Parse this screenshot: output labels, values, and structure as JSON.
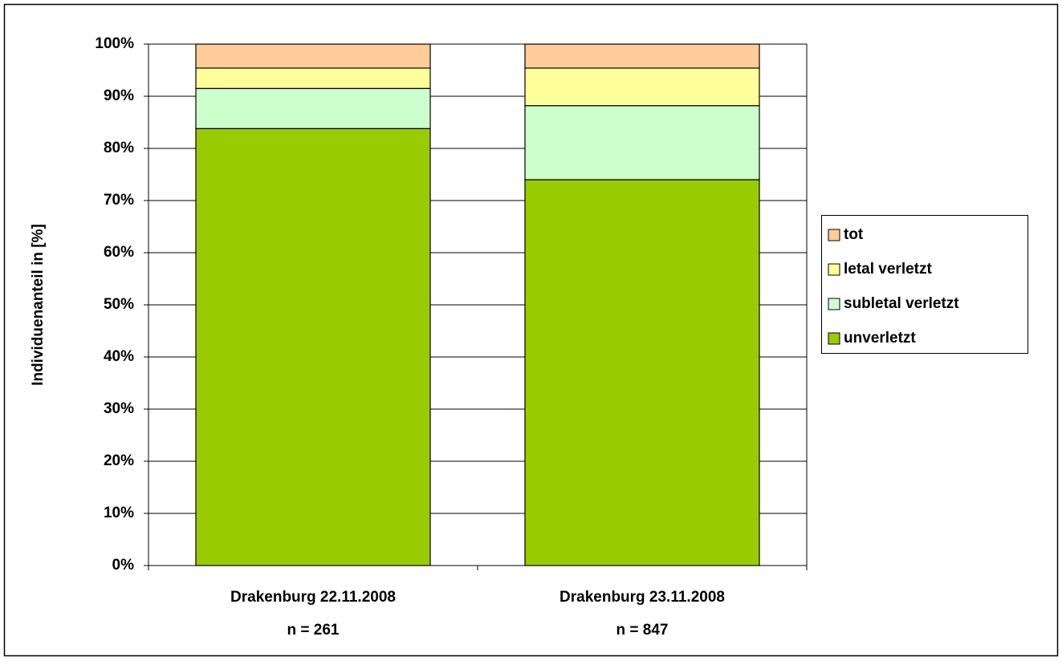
{
  "chart_data": {
    "type": "stacked_bar",
    "ylabel": "Individuenanteil in [%]",
    "categories": [
      "Drakenburg 22.11.2008",
      "Drakenburg 23.11.2008"
    ],
    "category_sublabels": [
      "n = 261",
      "n = 847"
    ],
    "series": [
      {
        "name": "unverletzt",
        "color": "#99cc00",
        "values": [
          83.8,
          74.0
        ]
      },
      {
        "name": "subletal verletzt",
        "color": "#ccffcc",
        "values": [
          7.7,
          14.2
        ]
      },
      {
        "name": "letal verletzt",
        "color": "#ffff99",
        "values": [
          3.9,
          7.2
        ]
      },
      {
        "name": "tot",
        "color": "#ffcc99",
        "values": [
          4.6,
          4.6
        ]
      }
    ],
    "ylim": [
      0,
      100
    ],
    "yticks": [
      {
        "value": 0,
        "label": "0%"
      },
      {
        "value": 10,
        "label": "10%"
      },
      {
        "value": 20,
        "label": "20%"
      },
      {
        "value": 30,
        "label": "30%"
      },
      {
        "value": 40,
        "label": "40%"
      },
      {
        "value": 50,
        "label": "50%"
      },
      {
        "value": 60,
        "label": "60%"
      },
      {
        "value": 70,
        "label": "70%"
      },
      {
        "value": 80,
        "label": "80%"
      },
      {
        "value": 90,
        "label": "90%"
      },
      {
        "value": 100,
        "label": "100%"
      }
    ],
    "grid": true,
    "legend": "right"
  }
}
